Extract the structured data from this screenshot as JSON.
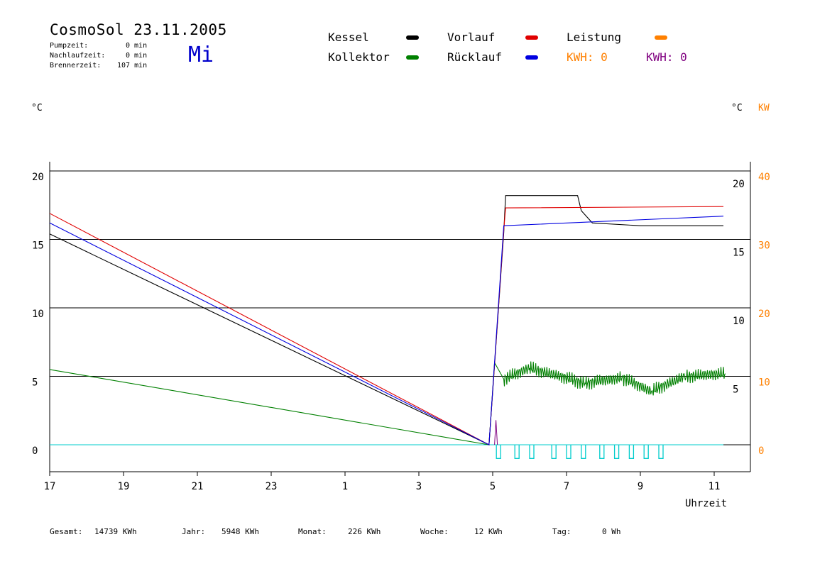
{
  "header": {
    "title": "CosmoSol 23.11.2005",
    "day": "Mi",
    "info": [
      {
        "label": "Pumpzeit:",
        "value": "0 min"
      },
      {
        "label": "Nachlaufzeit:",
        "value": "0 min"
      },
      {
        "label": "Brennerzeit:",
        "value": "107 min"
      }
    ]
  },
  "legend": {
    "kessel": "Kessel",
    "kollektor": "Kollektor",
    "vorlauf": "Vorlauf",
    "ruecklauf": "Rücklauf",
    "leistung": "Leistung",
    "kwh_orange": "KWH: 0",
    "kwh_purple": "KWH: 0"
  },
  "units": {
    "left": "°C",
    "right_c": "°C",
    "right_kw": "KW",
    "xlabel": "Uhrzeit"
  },
  "footer": [
    {
      "label": "Gesamt:",
      "value": "14739 KWh"
    },
    {
      "label": "Jahr:",
      "value": "5948 KWh"
    },
    {
      "label": "Monat:",
      "value": "226 KWh"
    },
    {
      "label": "Woche:",
      "value": "12 KWh"
    },
    {
      "label": "Tag:",
      "value": "0 Wh"
    }
  ],
  "colors": {
    "kessel": "#000000",
    "kollektor": "#008000",
    "vorlauf": "#e00000",
    "ruecklauf": "#0000e0",
    "leistung": "#ff8000",
    "kwh_purple": "#800080",
    "cyan": "#00cccc"
  },
  "chart_data": {
    "type": "line",
    "xlabel": "Uhrzeit",
    "ylabel": "°C",
    "x_unit": "hours since 17:00",
    "xlim": [
      0,
      19
    ],
    "ylim_left": [
      -1.5,
      20.5
    ],
    "left_ticks": [
      0,
      5,
      10,
      15,
      20
    ],
    "right_ticks_c": [
      5,
      10,
      15,
      20
    ],
    "right_ticks_kw": [
      0,
      10,
      20,
      30,
      40
    ],
    "x_tick_labels": [
      "17",
      "19",
      "21",
      "23",
      "1",
      "3",
      "5",
      "7",
      "9",
      "11"
    ],
    "gridlines": [
      0,
      5,
      10,
      15,
      20
    ],
    "series": [
      {
        "name": "Kessel",
        "color": "#000000",
        "points": [
          [
            0,
            15.4
          ],
          [
            11.9,
            0
          ],
          [
            12.3,
            15.5
          ],
          [
            12.35,
            18.2
          ],
          [
            14.3,
            18.2
          ],
          [
            14.4,
            17.1
          ],
          [
            14.7,
            16.2
          ],
          [
            16,
            16
          ],
          [
            18.25,
            16
          ]
        ]
      },
      {
        "name": "Kollektor",
        "color": "#008000",
        "points": [
          [
            0,
            5.5
          ],
          [
            11.9,
            0
          ],
          [
            12.05,
            6
          ],
          [
            12.3,
            4.8
          ],
          [
            13,
            5.6
          ],
          [
            14.5,
            4.5
          ],
          [
            15.5,
            4.9
          ],
          [
            16.3,
            3.9
          ],
          [
            17.2,
            5
          ],
          [
            18.3,
            5.2
          ]
        ]
      },
      {
        "name": "Vorlauf",
        "color": "#e00000",
        "points": [
          [
            0,
            16.9
          ],
          [
            11.9,
            0
          ],
          [
            12.3,
            15.7
          ],
          [
            12.35,
            17.3
          ],
          [
            18.25,
            17.4
          ]
        ]
      },
      {
        "name": "Rücklauf",
        "color": "#0000e0",
        "points": [
          [
            0,
            16.2
          ],
          [
            11.9,
            0
          ],
          [
            12.3,
            16
          ],
          [
            18.25,
            16.7
          ]
        ]
      }
    ]
  }
}
